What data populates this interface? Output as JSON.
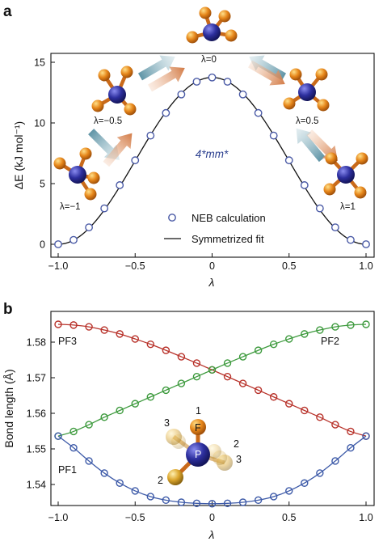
{
  "panel_a": {
    "letter": "a",
    "symmetry_label": "4*mm*",
    "structure_labels": [
      "λ=−1",
      "λ=−0.5",
      "λ=0",
      "λ=0.5",
      "λ=1"
    ],
    "legend": {
      "points": "NEB calculation",
      "line": "Symmetrized fit"
    }
  },
  "panel_b": {
    "letter": "b",
    "atom_labels": {
      "F": "F",
      "P": "P",
      "n1": "1",
      "n2a": "2",
      "n2b": "2",
      "n3a": "3",
      "n3b": "3"
    }
  },
  "colors": {
    "neb_marker": "#4a5aa6",
    "fit_line": "#111111",
    "pf1": "#3d5aa8",
    "pf2": "#3d9a3d",
    "pf3": "#b8322a",
    "phosphorus": "#2d2f9e",
    "fluorine": "#e6861a",
    "arrow_blue": "#6fa0b0",
    "arrow_orange": "#d9895a"
  },
  "chart_data": [
    {
      "type": "scatter",
      "xlabel": "λ",
      "ylabel": "ΔE (kJ mol⁻¹)",
      "xlim": [
        -1.0,
        1.0
      ],
      "ylim": [
        0,
        15.5
      ],
      "xticks": [
        "−1.0",
        "−0.5",
        "0",
        "0.5",
        "1.0"
      ],
      "yticks": [
        "0",
        "5",
        "10",
        "15"
      ],
      "series": [
        {
          "name": "NEB calculation",
          "x": [
            -1.0,
            -0.9,
            -0.8,
            -0.7,
            -0.6,
            -0.5,
            -0.4,
            -0.3,
            -0.2,
            -0.1,
            0.0,
            0.1,
            0.2,
            0.3,
            0.4,
            0.5,
            0.6,
            0.7,
            0.8,
            0.9,
            1.0
          ],
          "y": [
            0.0,
            0.36,
            1.39,
            2.96,
            4.87,
            6.92,
            8.96,
            10.82,
            12.35,
            13.4,
            13.75,
            13.4,
            12.35,
            10.82,
            8.96,
            6.92,
            4.87,
            2.96,
            1.39,
            0.36,
            0.0
          ]
        },
        {
          "name": "Symmetrized fit",
          "model": "A(1+cos(πλ))/2",
          "amplitude": 13.75
        }
      ]
    },
    {
      "type": "line",
      "xlabel": "λ",
      "ylabel": "Bond length (Å)",
      "xlim": [
        -1.0,
        1.0
      ],
      "ylim": [
        1.534,
        1.587
      ],
      "xticks": [
        "−1.0",
        "−0.5",
        "0",
        "0.5",
        "1.0"
      ],
      "yticks": [
        "1.54",
        "1.55",
        "1.56",
        "1.57",
        "1.58"
      ],
      "series": [
        {
          "name": "PF3",
          "x": [
            -1.0,
            -0.9,
            -0.8,
            -0.7,
            -0.6,
            -0.5,
            -0.4,
            -0.3,
            -0.2,
            -0.1,
            0.0,
            0.1,
            0.2,
            0.3,
            0.4,
            0.5,
            0.6,
            0.7,
            0.8,
            0.9,
            1.0
          ],
          "y": [
            1.585,
            1.5848,
            1.5843,
            1.5834,
            1.5823,
            1.5809,
            1.5794,
            1.5777,
            1.5759,
            1.5741,
            1.5722,
            1.5703,
            1.5684,
            1.5665,
            1.5646,
            1.5627,
            1.5608,
            1.5589,
            1.5568,
            1.5549,
            1.5536
          ]
        },
        {
          "name": "PF2",
          "x": [
            -1.0,
            -0.9,
            -0.8,
            -0.7,
            -0.6,
            -0.5,
            -0.4,
            -0.3,
            -0.2,
            -0.1,
            0.0,
            0.1,
            0.2,
            0.3,
            0.4,
            0.5,
            0.6,
            0.7,
            0.8,
            0.9,
            1.0
          ],
          "y": [
            1.5536,
            1.5549,
            1.5568,
            1.5589,
            1.5608,
            1.5627,
            1.5646,
            1.5665,
            1.5684,
            1.5703,
            1.5722,
            1.5741,
            1.5759,
            1.5777,
            1.5794,
            1.5809,
            1.5823,
            1.5834,
            1.5843,
            1.5848,
            1.585
          ]
        },
        {
          "name": "PF1",
          "x": [
            -1.0,
            -0.9,
            -0.8,
            -0.7,
            -0.6,
            -0.5,
            -0.4,
            -0.3,
            -0.2,
            -0.1,
            0.0,
            0.1,
            0.2,
            0.3,
            0.4,
            0.5,
            0.6,
            0.7,
            0.8,
            0.9,
            1.0
          ],
          "y": [
            1.5536,
            1.5503,
            1.5466,
            1.5432,
            1.5404,
            1.5382,
            1.5366,
            1.5356,
            1.535,
            1.5347,
            1.5346,
            1.5347,
            1.535,
            1.5356,
            1.5366,
            1.5382,
            1.5404,
            1.5432,
            1.5466,
            1.5503,
            1.5536
          ]
        }
      ]
    }
  ]
}
